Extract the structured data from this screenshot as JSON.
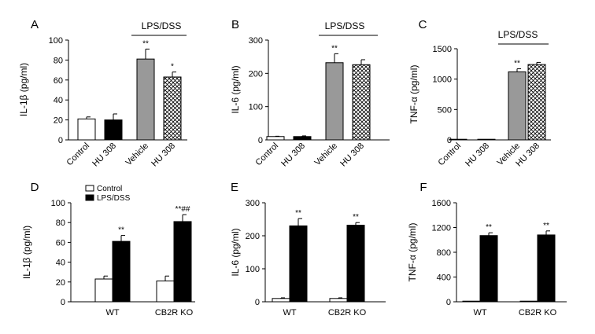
{
  "chart_data": [
    {
      "panel": "A",
      "type": "bar",
      "categories": [
        "Control",
        "HU 308",
        "Vehicle",
        "HU 308"
      ],
      "values": [
        21,
        20,
        81,
        63
      ],
      "errors": [
        2,
        6,
        10,
        5
      ],
      "fills": [
        "white",
        "black",
        "gray",
        "crosshatch"
      ],
      "significance": [
        "",
        "",
        "**",
        "*"
      ],
      "ylabel": "IL-1β (pg/ml)",
      "ylim": [
        0,
        100
      ],
      "yticks": [
        0,
        20,
        40,
        60,
        80,
        100
      ],
      "group_label": "LPS/DSS",
      "group_span": [
        2,
        3
      ]
    },
    {
      "panel": "B",
      "type": "bar",
      "categories": [
        "Control",
        "HU 308",
        "Vehicle",
        "HU 308"
      ],
      "values": [
        10,
        10,
        232,
        226
      ],
      "errors": [
        1,
        2,
        27,
        15
      ],
      "fills": [
        "white",
        "black",
        "gray",
        "crosshatch"
      ],
      "significance": [
        "",
        "",
        "**",
        ""
      ],
      "ylabel": "IL-6 (pg/ml)",
      "ylim": [
        0,
        300
      ],
      "yticks": [
        0,
        100,
        200,
        300
      ],
      "group_label": "LPS/DSS",
      "group_span": [
        2,
        3
      ]
    },
    {
      "panel": "C",
      "type": "bar",
      "categories": [
        "Control",
        "HU 308",
        "Vehicle",
        "HU 308"
      ],
      "values": [
        3,
        5,
        1120,
        1240
      ],
      "errors": [
        1,
        1,
        50,
        35
      ],
      "fills": [
        "white",
        "black",
        "gray",
        "crosshatch"
      ],
      "significance": [
        "",
        "",
        "**",
        ""
      ],
      "ylabel": "TNF-α (pg/ml)",
      "ylim": [
        0,
        1500
      ],
      "yticks": [
        0,
        500,
        1000,
        1500
      ],
      "group_label": "LPS/DSS",
      "group_span": [
        2,
        3
      ]
    },
    {
      "panel": "D",
      "type": "bar",
      "categories": [
        "WT",
        "CB2R KO"
      ],
      "series": [
        {
          "name": "Control",
          "values": [
            23,
            21
          ],
          "errors": [
            3,
            5
          ],
          "fill": "white"
        },
        {
          "name": "LPS/DSS",
          "values": [
            61,
            81
          ],
          "errors": [
            6,
            7
          ],
          "fill": "black"
        }
      ],
      "significance": [
        [
          "",
          "**"
        ],
        [
          "",
          "**##"
        ]
      ],
      "ylabel": "IL-1β (pg/ml)",
      "ylim": [
        0,
        100
      ],
      "yticks": [
        0,
        20,
        40,
        60,
        80,
        100
      ],
      "legend": "top-left"
    },
    {
      "panel": "E",
      "type": "bar",
      "categories": [
        "WT",
        "CB2R KO"
      ],
      "series": [
        {
          "name": "Control",
          "values": [
            10,
            10
          ],
          "errors": [
            2,
            2
          ],
          "fill": "white"
        },
        {
          "name": "LPS/DSS",
          "values": [
            230,
            232
          ],
          "errors": [
            22,
            8
          ],
          "fill": "black"
        }
      ],
      "significance": [
        [
          "",
          "**"
        ],
        [
          "",
          "**"
        ]
      ],
      "ylabel": "IL-6 (pg/ml)",
      "ylim": [
        0,
        300
      ],
      "yticks": [
        0,
        100,
        200,
        300
      ]
    },
    {
      "panel": "F",
      "type": "bar",
      "categories": [
        "WT",
        "CB2R KO"
      ],
      "series": [
        {
          "name": "Control",
          "values": [
            3,
            3
          ],
          "errors": [
            1,
            1
          ],
          "fill": "white"
        },
        {
          "name": "LPS/DSS",
          "values": [
            1070,
            1080
          ],
          "errors": [
            45,
            65
          ],
          "fill": "black"
        }
      ],
      "significance": [
        [
          "",
          "**"
        ],
        [
          "",
          "**"
        ]
      ],
      "ylabel": "TNF-α (pg/ml)",
      "ylim": [
        0,
        1600
      ],
      "yticks": [
        0,
        400,
        800,
        1200,
        1600
      ]
    }
  ]
}
